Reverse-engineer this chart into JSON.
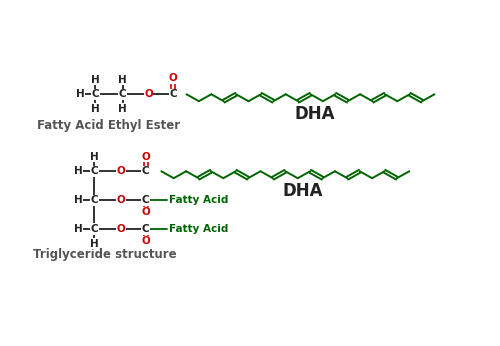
{
  "bg_color": "#ffffff",
  "black": "#222222",
  "red": "#cc0000",
  "green": "#006400",
  "label_color": "#555555",
  "title1": "Fatty Acid Ethyl Ester",
  "title2": "Triglyceride structure",
  "dha_label": "DHA",
  "figsize": [
    5.0,
    3.46
  ],
  "dpi": 100,
  "xlim": [
    0,
    10
  ],
  "ylim": [
    0,
    6.92
  ]
}
